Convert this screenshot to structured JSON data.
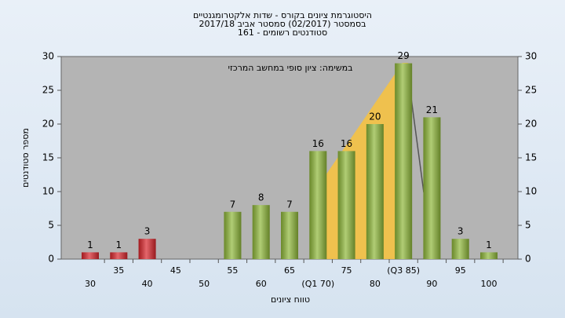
{
  "chart_data": {
    "type": "bar",
    "title": [
      "היסטוגרמת ציונים בקורס - שדות אלקטרומגנטיים",
      "בסמסטר  (02/2017)  סמסטר אביב 2017/18",
      "סטודנטים רשומים - 161"
    ],
    "annotation": "במשימה: ציון סופי במחשב המרכזי",
    "y_label": "מספר סטודנטים",
    "x_label": "טווח ציונים",
    "categories": [
      "30",
      "35",
      "40",
      "45",
      "50",
      "55",
      "60",
      "65",
      "(Q1 70)",
      "75",
      "80",
      "(Q3 85)",
      "90",
      "95",
      "100"
    ],
    "values": [
      1,
      1,
      3,
      0,
      0,
      7,
      8,
      7,
      16,
      16,
      20,
      29,
      21,
      3,
      1
    ],
    "colors": [
      "#d9262c",
      "#d9262c",
      "#d9262c",
      "#8fb83a",
      "#8fb83a",
      "#8fb83a",
      "#8fb83a",
      "#8fb83a",
      "#8fb83a",
      "#8fb83a",
      "#8fb83a",
      "#8fb83a",
      "#8fb83a",
      "#8fb83a",
      "#8fb83a"
    ],
    "ylim": [
      0,
      30
    ],
    "yticks": [
      0,
      5,
      10,
      15,
      20,
      25,
      30
    ]
  }
}
